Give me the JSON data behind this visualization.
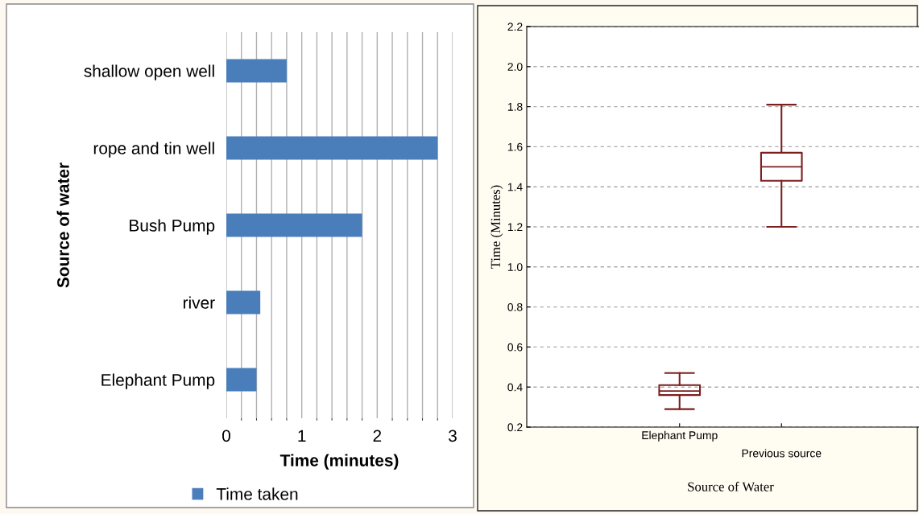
{
  "chart_data": [
    {
      "type": "bar",
      "orientation": "horizontal",
      "xlabel": "Time (minutes)",
      "ylabel": "Source of water",
      "categories": [
        "shallow open well",
        "rope and tin well",
        "Bush Pump",
        "river",
        "Elephant Pump"
      ],
      "series": [
        {
          "name": "Time taken",
          "color": "#4a7ebb",
          "values": [
            0.8,
            2.8,
            1.8,
            0.45,
            0.4
          ]
        }
      ],
      "xlim": [
        0,
        3
      ],
      "xticks": [
        0,
        1,
        2,
        3
      ],
      "grid": "x",
      "legend": "bottom"
    },
    {
      "type": "box",
      "xlabel": "Source of Water",
      "ylabel": "Time (Minutes)",
      "categories": [
        "Elephant Pump",
        "Previous source"
      ],
      "series": [
        {
          "color": "#7b1f1f",
          "boxes": [
            {
              "low": 0.29,
              "q1": 0.36,
              "median": 0.38,
              "q3": 0.41,
              "high": 0.47
            },
            {
              "low": 1.2,
              "q1": 1.43,
              "median": 1.5,
              "q3": 1.57,
              "high": 1.81
            }
          ]
        }
      ],
      "ylim": [
        0.2,
        2.2
      ],
      "yticks": [
        {
          "value": 0.2,
          "label": "0.2"
        },
        {
          "value": 0.4,
          "label": "0.4"
        },
        {
          "value": 0.6,
          "label": "0.6"
        },
        {
          "value": 0.8,
          "label": "0.8"
        },
        {
          "value": 1.0,
          "label": "1.0"
        },
        {
          "value": 1.2,
          "label": "1.2"
        },
        {
          "value": 1.4,
          "label": "1.4"
        },
        {
          "value": 1.6,
          "label": "1.6"
        },
        {
          "value": 1.8,
          "label": "1.8"
        },
        {
          "value": 2.0,
          "label": "2.0"
        },
        {
          "value": 2.2,
          "label": "2.2"
        }
      ],
      "grid": "y"
    }
  ]
}
